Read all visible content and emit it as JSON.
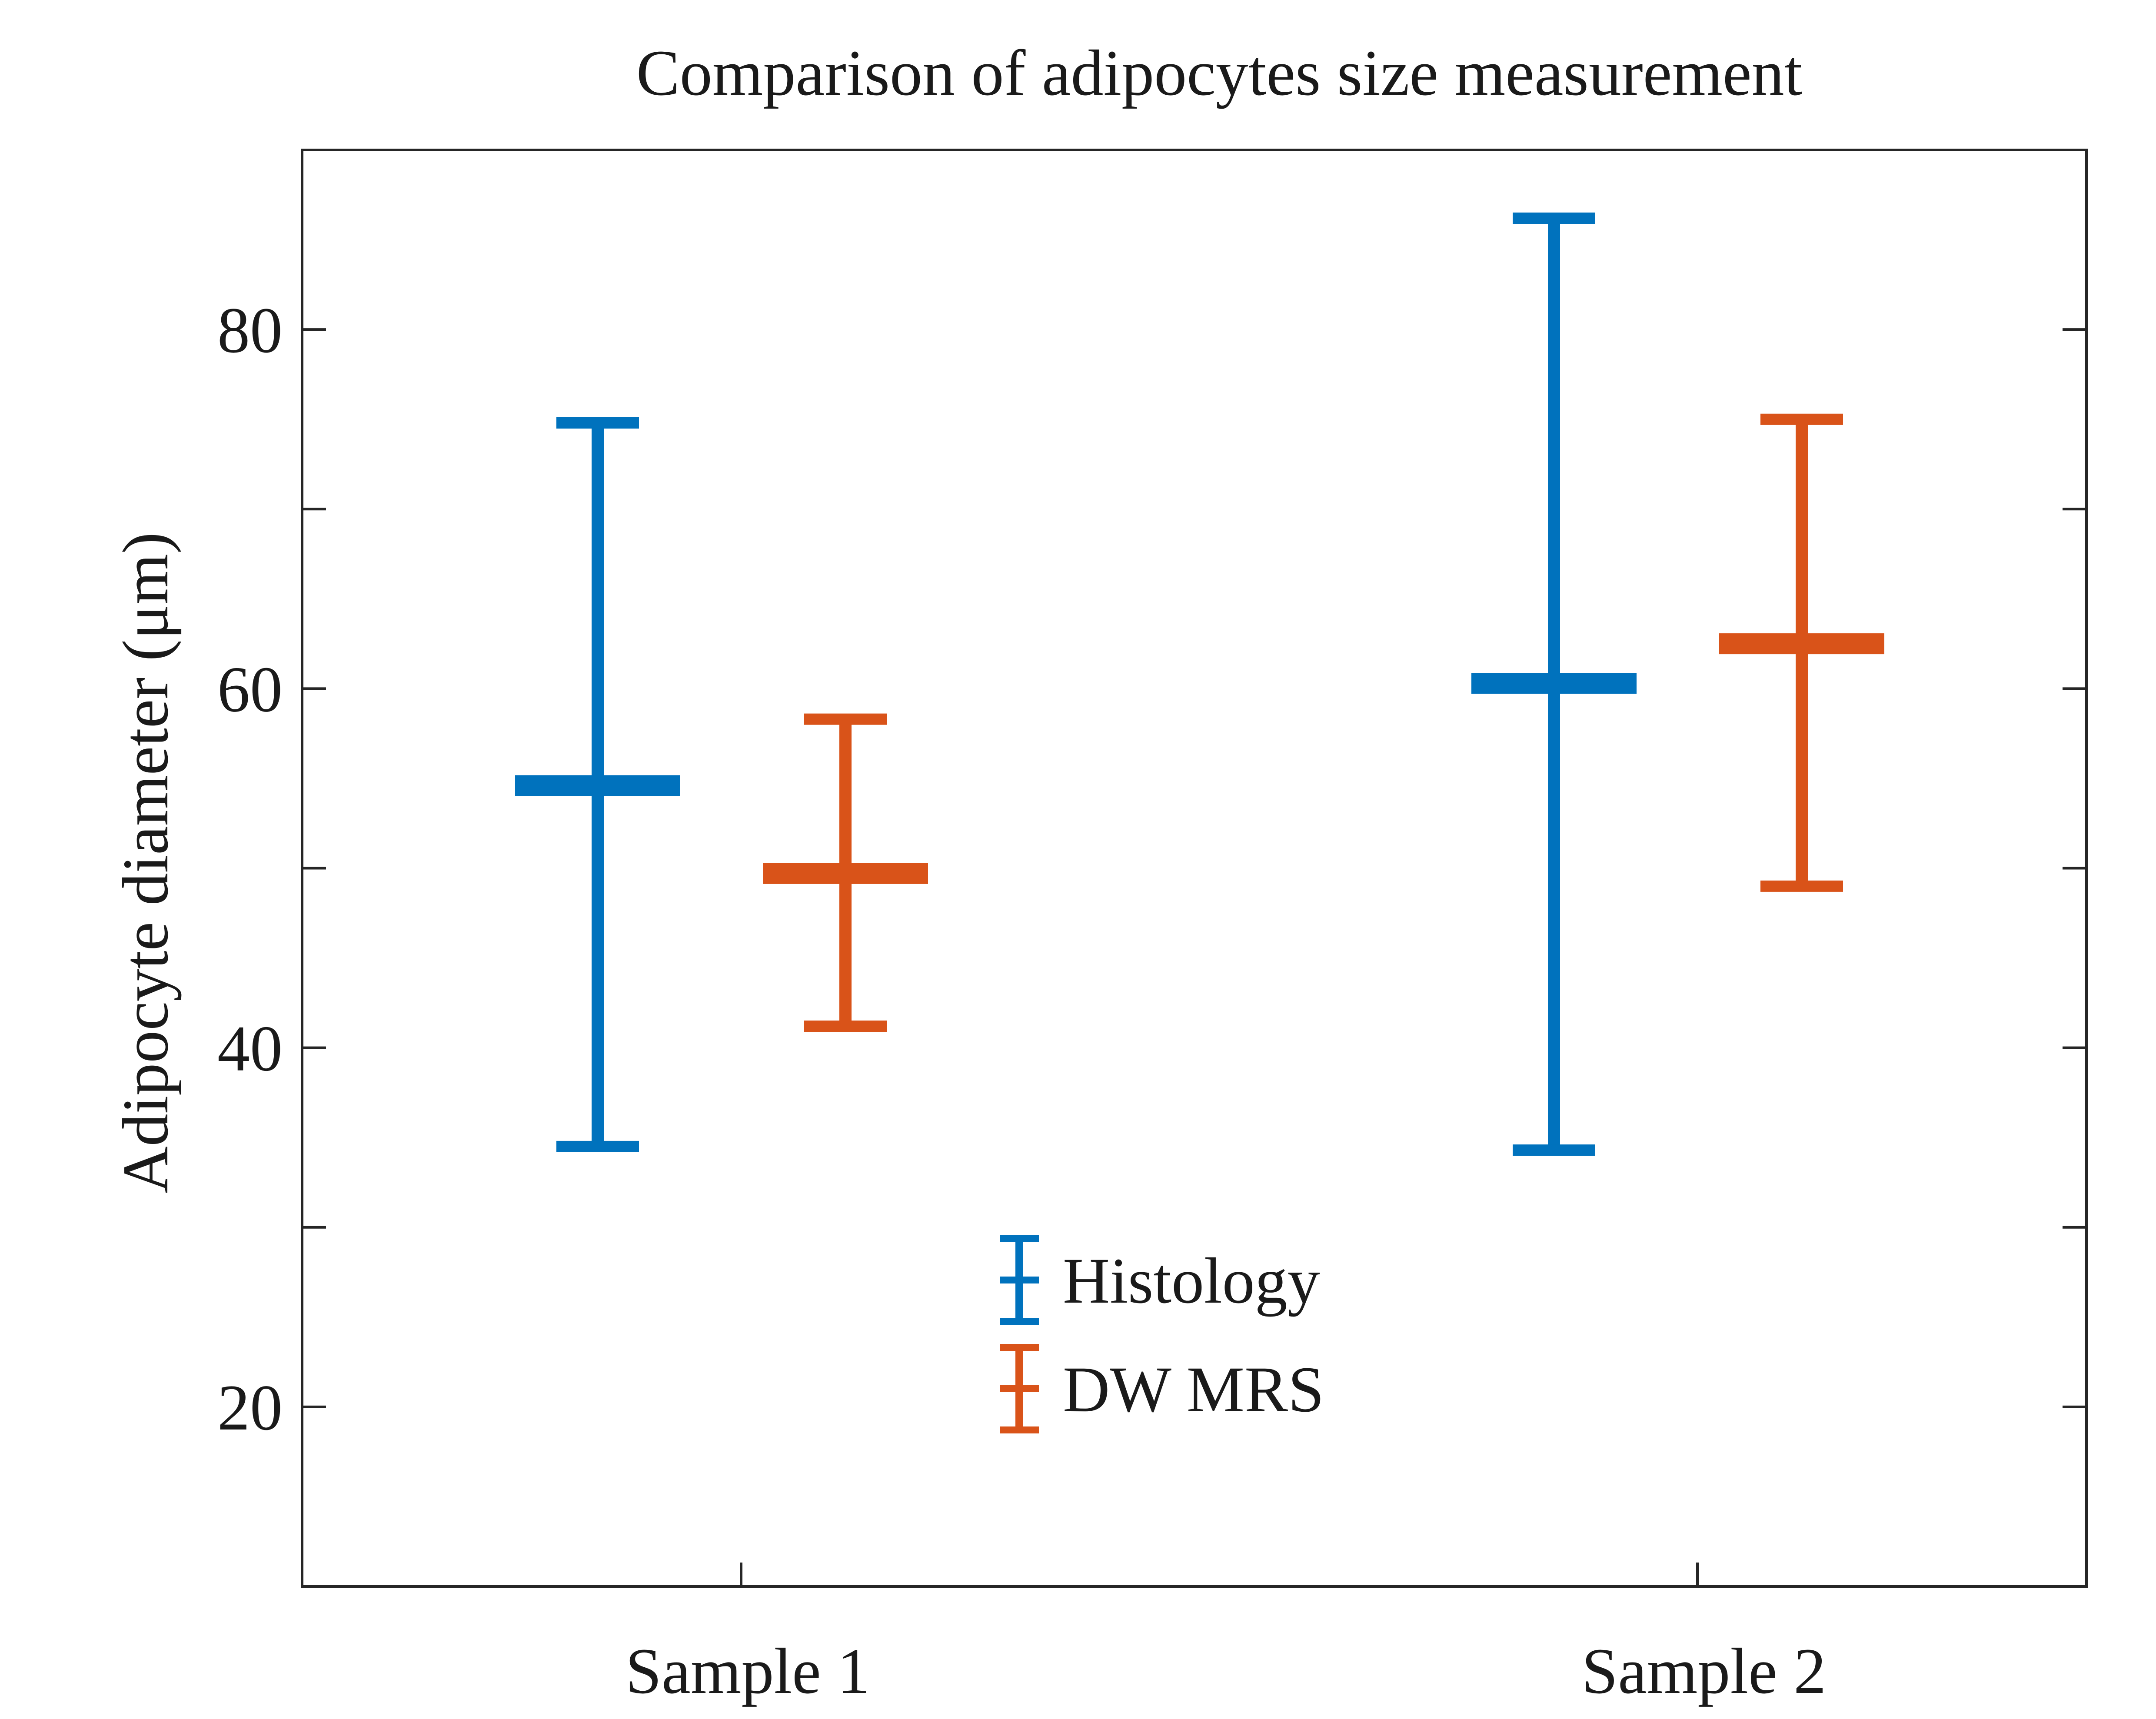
{
  "chart_data": {
    "type": "errorbar",
    "title": "Comparison of adipocytes size measurement",
    "xlabel": "",
    "ylabel": "Adipocyte diameter (μm)",
    "categories": [
      "Sample 1",
      "Sample 2"
    ],
    "ylim": [
      10,
      90
    ],
    "yticks": [
      20,
      30,
      40,
      50,
      60,
      70,
      80
    ],
    "ytick_labels": [
      "20",
      "",
      "40",
      "",
      "60",
      "",
      "80"
    ],
    "grid": false,
    "legend_position": "bottom-center",
    "series": [
      {
        "name": "Histology",
        "color": "#0072BD",
        "mean": [
          54.6,
          60.3
        ],
        "lower": [
          34.5,
          34.3
        ],
        "upper": [
          74.8,
          86.2
        ]
      },
      {
        "name": "DW MRS",
        "color": "#D95319",
        "mean": [
          49.7,
          62.5
        ],
        "lower": [
          41.2,
          49.0
        ],
        "upper": [
          58.3,
          75.0
        ]
      }
    ]
  }
}
